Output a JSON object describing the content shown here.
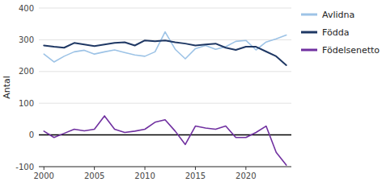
{
  "chart_data": {
    "type": "line",
    "ylabel": "Antal",
    "x": [
      2000,
      2001,
      2002,
      2003,
      2004,
      2005,
      2006,
      2007,
      2008,
      2009,
      2010,
      2011,
      2012,
      2013,
      2014,
      2015,
      2016,
      2017,
      2018,
      2019,
      2020,
      2021,
      2022,
      2023,
      2024
    ],
    "series": [
      {
        "name": "Avlidna",
        "color": "#9dc3e6",
        "values": [
          255,
          230,
          248,
          262,
          267,
          255,
          262,
          268,
          260,
          252,
          248,
          262,
          325,
          270,
          240,
          272,
          282,
          270,
          278,
          295,
          298,
          268,
          293,
          303,
          315
        ]
      },
      {
        "name": "Födda",
        "color": "#1f3864",
        "values": [
          282,
          278,
          275,
          290,
          285,
          280,
          285,
          290,
          292,
          282,
          298,
          295,
          298,
          292,
          288,
          282,
          285,
          288,
          275,
          268,
          278,
          278,
          263,
          248,
          220
        ]
      },
      {
        "name": "Födelsenetto",
        "color": "#7030a0",
        "values": [
          12,
          -8,
          5,
          18,
          13,
          18,
          60,
          18,
          8,
          12,
          18,
          40,
          48,
          12,
          -30,
          28,
          22,
          18,
          28,
          -8,
          -8,
          8,
          28,
          -55,
          -95
        ]
      }
    ],
    "xlim": [
      1999.5,
      2024.5
    ],
    "xticks": [
      2000,
      2005,
      2010,
      2015,
      2020
    ],
    "ylim": [
      -100,
      400
    ],
    "yticks": [
      -100,
      0,
      100,
      200,
      300,
      400
    ],
    "grid": true,
    "legend": "right"
  }
}
